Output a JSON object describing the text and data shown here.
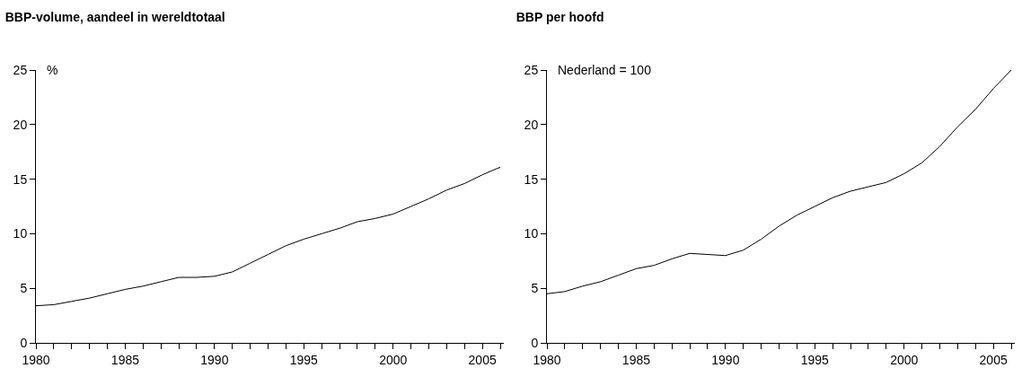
{
  "chart_data": [
    {
      "type": "line",
      "title": "BBP-volume, aandeel in wereldtotaal",
      "ylabel": "%",
      "x": [
        1980,
        1981,
        1982,
        1983,
        1984,
        1985,
        1986,
        1987,
        1988,
        1989,
        1990,
        1991,
        1992,
        1993,
        1994,
        1995,
        1996,
        1997,
        1998,
        1999,
        2000,
        2001,
        2002,
        2003,
        2004,
        2005,
        2006
      ],
      "series": [
        {
          "color": "#000000",
          "values": [
            3.4,
            3.5,
            3.8,
            4.1,
            4.5,
            4.9,
            5.2,
            5.6,
            6.0,
            6.0,
            6.1,
            6.5,
            7.3,
            8.1,
            8.9,
            9.5,
            10.0,
            10.5,
            11.1,
            11.4,
            11.8,
            12.5,
            13.2,
            14.0,
            14.6,
            15.4,
            16.1
          ]
        }
      ],
      "xlim": [
        1980,
        2006.2
      ],
      "xticks": [
        1980,
        {
          "value": 1981,
          "label": null
        },
        {
          "value": 1982,
          "label": null
        },
        {
          "value": 1983,
          "label": null
        },
        {
          "value": 1984,
          "label": null
        },
        1985,
        {
          "value": 1986,
          "label": null
        },
        {
          "value": 1987,
          "label": null
        },
        {
          "value": 1988,
          "label": null
        },
        {
          "value": 1989,
          "label": null
        },
        1990,
        {
          "value": 1991,
          "label": null
        },
        {
          "value": 1992,
          "label": null
        },
        {
          "value": 1993,
          "label": null
        },
        {
          "value": 1994,
          "label": null
        },
        1995,
        {
          "value": 1996,
          "label": null
        },
        {
          "value": 1997,
          "label": null
        },
        {
          "value": 1998,
          "label": null
        },
        {
          "value": 1999,
          "label": null
        },
        2000,
        {
          "value": 2001,
          "label": null
        },
        {
          "value": 2002,
          "label": null
        },
        {
          "value": 2003,
          "label": null
        },
        {
          "value": 2004,
          "label": null
        },
        2005,
        {
          "value": 2006,
          "label": null
        }
      ],
      "ylim": [
        0,
        25
      ],
      "yticks": [
        0,
        5,
        10,
        15,
        20,
        25
      ],
      "grid": false,
      "marker": "none",
      "line_style": "solid"
    },
    {
      "type": "line",
      "title": "BBP per hoofd",
      "ylabel": "Nederland = 100",
      "x": [
        1980,
        1981,
        1982,
        1983,
        1984,
        1985,
        1986,
        1987,
        1988,
        1989,
        1990,
        1991,
        1992,
        1993,
        1994,
        1995,
        1996,
        1997,
        1998,
        1999,
        2000,
        2001,
        2002,
        2003,
        2004,
        2005,
        2006
      ],
      "series": [
        {
          "color": "#000000",
          "values": [
            4.5,
            4.7,
            5.2,
            5.6,
            6.2,
            6.8,
            7.1,
            7.7,
            8.2,
            8.1,
            8.0,
            8.5,
            9.5,
            10.7,
            11.7,
            12.5,
            13.3,
            13.9,
            14.3,
            14.7,
            15.5,
            16.5,
            18.0,
            19.8,
            21.4,
            23.3,
            25.0
          ]
        }
      ],
      "xlim": [
        1980,
        2006.2
      ],
      "xticks": [
        1980,
        {
          "value": 1981,
          "label": null
        },
        {
          "value": 1982,
          "label": null
        },
        {
          "value": 1983,
          "label": null
        },
        {
          "value": 1984,
          "label": null
        },
        1985,
        {
          "value": 1986,
          "label": null
        },
        {
          "value": 1987,
          "label": null
        },
        {
          "value": 1988,
          "label": null
        },
        {
          "value": 1989,
          "label": null
        },
        1990,
        {
          "value": 1991,
          "label": null
        },
        {
          "value": 1992,
          "label": null
        },
        {
          "value": 1993,
          "label": null
        },
        {
          "value": 1994,
          "label": null
        },
        1995,
        {
          "value": 1996,
          "label": null
        },
        {
          "value": 1997,
          "label": null
        },
        {
          "value": 1998,
          "label": null
        },
        {
          "value": 1999,
          "label": null
        },
        2000,
        {
          "value": 2001,
          "label": null
        },
        {
          "value": 2002,
          "label": null
        },
        {
          "value": 2003,
          "label": null
        },
        {
          "value": 2004,
          "label": null
        },
        2005,
        {
          "value": 2006,
          "label": null
        }
      ],
      "ylim": [
        0,
        25
      ],
      "yticks": [
        0,
        5,
        10,
        15,
        20,
        25
      ],
      "grid": false,
      "marker": "none",
      "line_style": "solid"
    }
  ]
}
